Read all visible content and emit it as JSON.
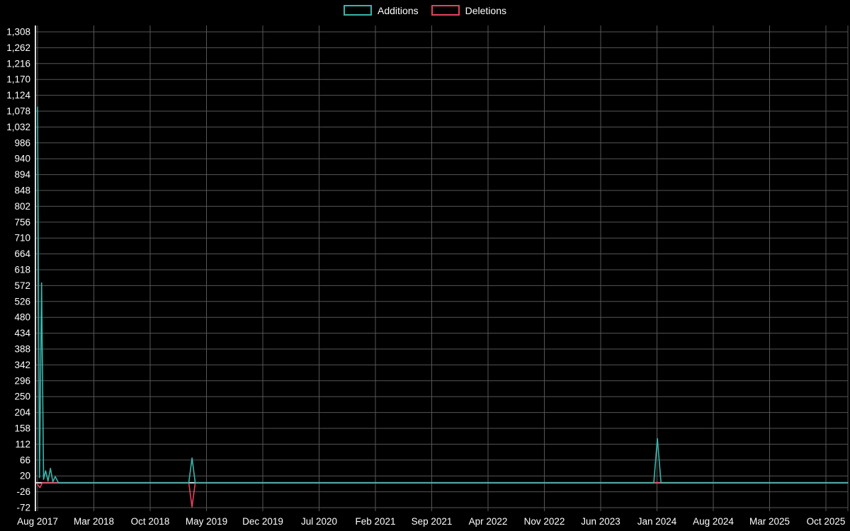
{
  "page": {
    "background": "#000000",
    "text_color": "#ffffff"
  },
  "legend": {
    "position": "top-center",
    "items": [
      {
        "label": "Additions",
        "color": "#3ab5ac"
      },
      {
        "label": "Deletions",
        "color": "#e8415e"
      }
    ]
  },
  "chart_data": {
    "type": "line",
    "background": "#000000",
    "grid": true,
    "grid_color": "#565656",
    "axis_color": "#dcdcdc",
    "zero_line_color": "#d9d9d9",
    "tick_label_color": "#ffffff",
    "legend_position": "top-center",
    "y_range": [
      -72,
      1308
    ],
    "y_tick_step": 46,
    "y_tick_labels": [
      "-72",
      "-26",
      "20",
      "66",
      "112",
      "158",
      "204",
      "250",
      "296",
      "342",
      "388",
      "434",
      "480",
      "526",
      "572",
      "618",
      "664",
      "710",
      "756",
      "802",
      "848",
      "894",
      "940",
      "986",
      "1,032",
      "1,078",
      "1,124",
      "1,170",
      "1,216",
      "1,262",
      "1,308"
    ],
    "x_tick_labels": [
      "Aug 2017",
      "Mar 2018",
      "Oct 2018",
      "May 2019",
      "Dec 2019",
      "Jul 2020",
      "Feb 2021",
      "Sep 2021",
      "Apr 2022",
      "Nov 2022",
      "Jun 2023",
      "Jan 2024",
      "Aug 2024",
      "Mar 2025",
      "Oct 2025"
    ],
    "x_tick_interval_months": 7,
    "x_encoding": "months after Aug 2017",
    "series": [
      {
        "name": "Additions",
        "color": "#3ab5ac",
        "points": [
          [
            0,
            1090
          ],
          [
            0.25,
            15
          ],
          [
            0.5,
            580
          ],
          [
            0.75,
            10
          ],
          [
            1.0,
            35
          ],
          [
            1.3,
            5
          ],
          [
            1.6,
            42
          ],
          [
            1.9,
            3
          ],
          [
            2.2,
            18
          ],
          [
            2.6,
            0
          ],
          [
            18.8,
            0
          ],
          [
            19.2,
            72
          ],
          [
            19.6,
            0
          ],
          [
            76.6,
            0
          ],
          [
            77.05,
            128
          ],
          [
            77.5,
            0
          ],
          [
            98,
            0
          ]
        ]
      },
      {
        "name": "Deletions",
        "color": "#e8415e",
        "points": [
          [
            0,
            -5
          ],
          [
            0.3,
            -14
          ],
          [
            0.6,
            0
          ],
          [
            18.8,
            0
          ],
          [
            19.2,
            -70
          ],
          [
            19.6,
            0
          ],
          [
            98,
            0
          ]
        ]
      }
    ]
  }
}
